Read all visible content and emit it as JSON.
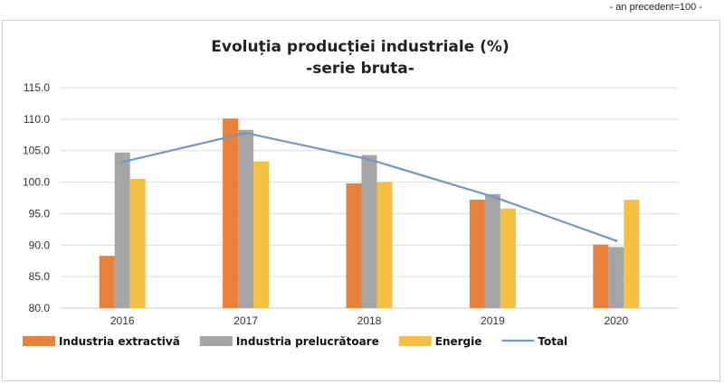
{
  "header": {
    "note": "- an precedent=100 -"
  },
  "chart_data": {
    "type": "bar",
    "title": "Evoluția producției industriale (%)",
    "subtitle": "-serie bruta-",
    "xlabel": "",
    "ylabel": "",
    "categories": [
      "2016",
      "2017",
      "2018",
      "2019",
      "2020"
    ],
    "ylim": [
      80.0,
      115.0
    ],
    "yticks": [
      "80.0",
      "85.0",
      "90.0",
      "95.0",
      "100.0",
      "105.0",
      "110.0",
      "115.0"
    ],
    "grid": true,
    "legend_position": "bottom-left",
    "series": [
      {
        "name": "Industria extractivă",
        "type": "bar",
        "color": "#E8813C",
        "values": [
          88.3,
          110.1,
          99.8,
          97.2,
          90.1
        ]
      },
      {
        "name": "Industria prelucrătoare",
        "type": "bar",
        "color": "#A5A5A5",
        "values": [
          104.7,
          108.3,
          104.3,
          98.1,
          89.7
        ]
      },
      {
        "name": "Energie",
        "type": "bar",
        "color": "#F4C043",
        "values": [
          100.5,
          103.3,
          100.0,
          95.8,
          97.2
        ]
      },
      {
        "name": "Total",
        "type": "line",
        "color": "#6E9AC5",
        "values": [
          103.2,
          107.8,
          103.6,
          97.7,
          90.7
        ]
      }
    ]
  }
}
